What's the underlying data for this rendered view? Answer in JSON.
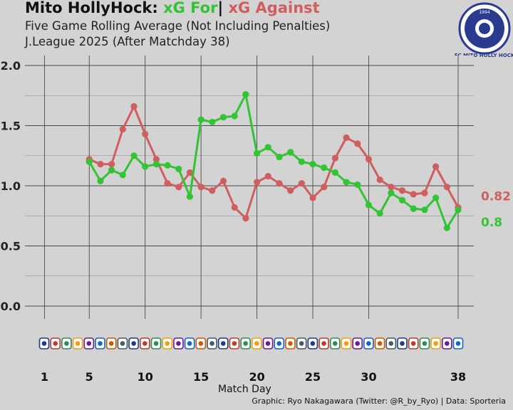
{
  "header": {
    "title_main": "Mito HollyHock:",
    "title_for": "xG For",
    "title_sep": "|",
    "title_against": "xG Against",
    "subtitle": "Five Game Rolling Average (Not Including Penalties)",
    "subtitle2": "J.League 2025 (After Matchday 38)"
  },
  "logo": {
    "text": "FC MITO HOLLY HOCK",
    "year": "1994"
  },
  "credit": "Graphic: Ryo Nakagawara (Twitter: @R_by_Ryo) | Data: Sporteria",
  "colors": {
    "for": "#33c433",
    "against": "#d05e5e"
  },
  "chart_data": {
    "type": "line",
    "xlabel": "Match Day",
    "ylabel": "",
    "ylim": [
      0.0,
      2.0
    ],
    "xlim": [
      1,
      38
    ],
    "yticks": [
      "0.0",
      "0.5",
      "1.0",
      "1.5",
      "2.0"
    ],
    "xticks": [
      "1",
      "5",
      "10",
      "15",
      "20",
      "25",
      "30",
      "38"
    ],
    "xtick_values": [
      1,
      5,
      10,
      15,
      20,
      25,
      30,
      38
    ],
    "grid": true,
    "series": [
      {
        "name": "xG For",
        "color": "#33c433",
        "x": [
          5,
          6,
          7,
          8,
          9,
          10,
          11,
          12,
          13,
          14,
          15,
          16,
          17,
          18,
          19,
          20,
          21,
          22,
          23,
          24,
          25,
          26,
          27,
          28,
          29,
          30,
          31,
          32,
          33,
          34,
          35,
          36,
          37,
          38
        ],
        "values": [
          1.2,
          1.04,
          1.13,
          1.09,
          1.25,
          1.16,
          1.18,
          1.17,
          1.14,
          0.91,
          1.55,
          1.53,
          1.57,
          1.58,
          1.76,
          1.27,
          1.32,
          1.24,
          1.28,
          1.2,
          1.18,
          1.15,
          1.11,
          1.03,
          1.01,
          0.84,
          0.77,
          0.94,
          0.88,
          0.81,
          0.8,
          0.9,
          0.65,
          0.8
        ],
        "end_label": "0.8"
      },
      {
        "name": "xG Against",
        "color": "#d05e5e",
        "x": [
          5,
          6,
          7,
          8,
          9,
          10,
          11,
          12,
          13,
          14,
          15,
          16,
          17,
          18,
          19,
          20,
          21,
          22,
          23,
          24,
          25,
          26,
          27,
          28,
          29,
          30,
          31,
          32,
          33,
          34,
          35,
          36,
          37,
          38
        ],
        "values": [
          1.22,
          1.18,
          1.18,
          1.47,
          1.66,
          1.43,
          1.22,
          1.02,
          0.99,
          1.11,
          0.99,
          0.96,
          1.04,
          0.82,
          0.73,
          1.03,
          1.08,
          1.02,
          0.96,
          1.02,
          0.9,
          0.99,
          1.23,
          1.4,
          1.35,
          1.22,
          1.05,
          0.99,
          0.96,
          0.93,
          0.94,
          1.16,
          0.99,
          0.82
        ],
        "end_label": "0.82"
      }
    ],
    "opponent_badges": [
      "opponent-badge-1",
      "opponent-badge-2",
      "opponent-badge-3",
      "opponent-badge-4",
      "opponent-badge-5",
      "opponent-badge-6",
      "opponent-badge-7",
      "opponent-badge-8",
      "opponent-badge-9",
      "opponent-badge-10",
      "opponent-badge-11",
      "opponent-badge-12",
      "opponent-badge-13",
      "opponent-badge-14",
      "opponent-badge-15",
      "opponent-badge-16",
      "opponent-badge-17",
      "opponent-badge-18",
      "opponent-badge-19",
      "opponent-badge-20",
      "opponent-badge-21",
      "opponent-badge-22",
      "opponent-badge-23",
      "opponent-badge-24",
      "opponent-badge-25",
      "opponent-badge-26",
      "opponent-badge-27",
      "opponent-badge-28",
      "opponent-badge-29",
      "opponent-badge-30",
      "opponent-badge-31",
      "opponent-badge-32",
      "opponent-badge-33",
      "opponent-badge-34",
      "opponent-badge-35",
      "opponent-badge-36",
      "opponent-badge-37",
      "opponent-badge-38"
    ]
  }
}
